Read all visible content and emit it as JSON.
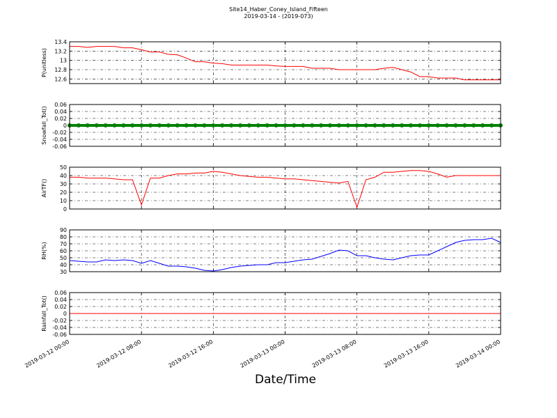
{
  "chart_data": {
    "type": "line",
    "title": "Site14_Haber_Coney_Island_Fifteen",
    "subtitle": "2019-03-14 - (2019-073)",
    "xlabel": "Date/Time",
    "x": [
      "2019-03-12 00:00",
      "2019-03-12 01:00",
      "2019-03-12 02:00",
      "2019-03-12 03:00",
      "2019-03-12 04:00",
      "2019-03-12 05:00",
      "2019-03-12 06:00",
      "2019-03-12 07:00",
      "2019-03-12 08:00",
      "2019-03-12 09:00",
      "2019-03-12 10:00",
      "2019-03-12 11:00",
      "2019-03-12 12:00",
      "2019-03-12 13:00",
      "2019-03-12 14:00",
      "2019-03-12 15:00",
      "2019-03-12 16:00",
      "2019-03-12 17:00",
      "2019-03-12 18:00",
      "2019-03-12 19:00",
      "2019-03-12 20:00",
      "2019-03-12 21:00",
      "2019-03-12 22:00",
      "2019-03-12 23:00",
      "2019-03-13 00:00",
      "2019-03-13 01:00",
      "2019-03-13 02:00",
      "2019-03-13 03:00",
      "2019-03-13 04:00",
      "2019-03-13 05:00",
      "2019-03-13 06:00",
      "2019-03-13 07:00",
      "2019-03-13 08:00",
      "2019-03-13 09:00",
      "2019-03-13 10:00",
      "2019-03-13 11:00",
      "2019-03-13 12:00",
      "2019-03-13 13:00",
      "2019-03-13 14:00",
      "2019-03-13 15:00",
      "2019-03-13 16:00",
      "2019-03-13 17:00",
      "2019-03-13 18:00",
      "2019-03-13 19:00",
      "2019-03-13 20:00",
      "2019-03-13 21:00",
      "2019-03-13 22:00",
      "2019-03-13 23:00",
      "2019-03-14 00:00"
    ],
    "xlim": [
      "2019-03-12 00:00",
      "2019-03-14 00:00"
    ],
    "xticks": [
      "2019-03-12 00:00",
      "2019-03-12 08:00",
      "2019-03-12 16:00",
      "2019-03-13 00:00",
      "2019-03-13 08:00",
      "2019-03-13 16:00",
      "2019-03-14 00:00"
    ],
    "grid": true,
    "panels": [
      {
        "ylabel": "P(unitless)",
        "ylim": [
          12.5,
          13.4
        ],
        "yticks": [
          12.6,
          12.8,
          13.0,
          13.2,
          13.4
        ],
        "series": [
          {
            "color": "#ff0000",
            "style": "line",
            "values": [
              13.3,
              13.3,
              13.28,
              13.3,
              13.3,
              13.3,
              13.27,
              13.27,
              13.23,
              13.18,
              13.18,
              13.13,
              13.12,
              13.05,
              12.97,
              12.97,
              12.94,
              12.93,
              12.9,
              12.9,
              12.9,
              12.9,
              12.9,
              12.88,
              12.87,
              12.87,
              12.87,
              12.83,
              12.83,
              12.83,
              12.8,
              12.8,
              12.8,
              12.8,
              12.8,
              12.83,
              12.85,
              12.8,
              12.75,
              12.65,
              12.65,
              12.62,
              12.62,
              12.62,
              12.58,
              12.58,
              12.58,
              12.58,
              12.58
            ]
          }
        ]
      },
      {
        "ylabel": "Snowfall_Tot()",
        "ylim": [
          -0.06,
          0.06
        ],
        "yticks": [
          -0.06,
          -0.04,
          -0.02,
          0.0,
          0.02,
          0.04,
          0.06
        ],
        "series": [
          {
            "color": "#008000",
            "style": "markers",
            "values": [
              0,
              0,
              0,
              0,
              0,
              0,
              0,
              0,
              0,
              0,
              0,
              0,
              0,
              0,
              0,
              0,
              0,
              0,
              0,
              0,
              0,
              0,
              0,
              0,
              0,
              0,
              0,
              0,
              0,
              0,
              0,
              0,
              0,
              0,
              0,
              0,
              0,
              0,
              0,
              0,
              0,
              0,
              0,
              0,
              0,
              0,
              0,
              0,
              0
            ]
          }
        ]
      },
      {
        "ylabel": "AirTF()",
        "ylim": [
          0,
          50
        ],
        "yticks": [
          0,
          10,
          20,
          30,
          40,
          50
        ],
        "series": [
          {
            "color": "#ff0000",
            "style": "line",
            "values": [
              38,
              38,
              37,
              37,
              37,
              36,
              35,
              35,
              5,
              37,
              37,
              40,
              42,
              42,
              43,
              43,
              45,
              44,
              42,
              40,
              39,
              38,
              38,
              37,
              36,
              36,
              35,
              34,
              33,
              32,
              31,
              33,
              2,
              35,
              38,
              44,
              44,
              45,
              46,
              46,
              45,
              42,
              38,
              40,
              40,
              40,
              40,
              40,
              40
            ]
          }
        ]
      },
      {
        "ylabel": "RH(%)",
        "ylim": [
          30,
          90
        ],
        "yticks": [
          30,
          40,
          50,
          60,
          70,
          80,
          90
        ],
        "series": [
          {
            "color": "#0000ff",
            "style": "line",
            "values": [
              46,
              45,
              44,
              44,
              47,
              46,
              47,
              46,
              42,
              46,
              42,
              38,
              38,
              37,
              35,
              32,
              31,
              33,
              36,
              38,
              39,
              40,
              40,
              43,
              43,
              45,
              47,
              48,
              52,
              56,
              61,
              60,
              53,
              53,
              50,
              48,
              47,
              50,
              53,
              54,
              54,
              60,
              66,
              72,
              75,
              76,
              76,
              78,
              72
            ]
          }
        ]
      },
      {
        "ylabel": "Rainfall_Tot()",
        "ylim": [
          -0.06,
          0.06
        ],
        "yticks": [
          -0.06,
          -0.04,
          -0.02,
          0.0,
          0.02,
          0.04,
          0.06
        ],
        "series": [
          {
            "color": "#ff0000",
            "style": "line",
            "values": [
              0,
              0,
              0,
              0,
              0,
              0,
              0,
              0,
              0,
              0,
              0,
              0,
              0,
              0,
              0,
              0,
              0,
              0,
              0,
              0,
              0,
              0,
              0,
              0,
              0,
              0,
              0,
              0,
              0,
              0,
              0,
              0,
              0,
              0,
              0,
              0,
              0,
              0,
              0,
              0,
              0,
              0,
              0,
              0,
              0,
              0,
              0,
              0,
              0
            ]
          }
        ]
      }
    ]
  }
}
